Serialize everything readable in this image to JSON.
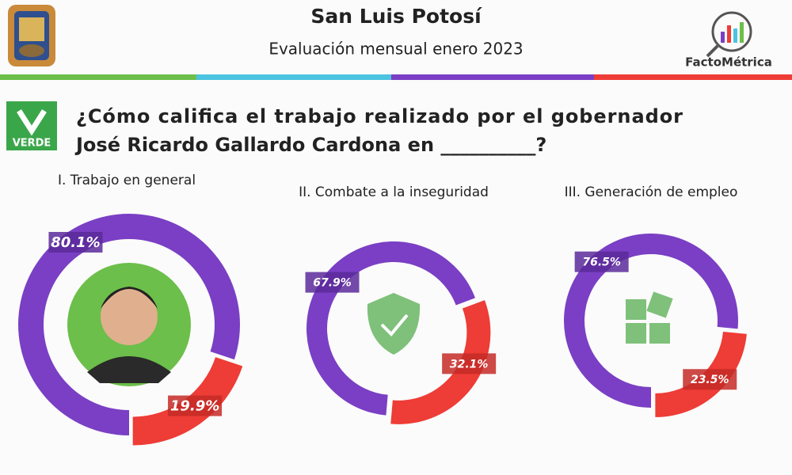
{
  "header": {
    "title": "San Luis Potosí",
    "subtitle": "Evaluación mensual enero 2023",
    "brand": "FactoMétrica",
    "party": "VERDE",
    "question": [
      "¿Cómo califica el trabajo realizado por el gobernador",
      "José Ricardo Gallardo Cardona en __________?"
    ]
  },
  "chart_data": [
    {
      "type": "pie",
      "title": "I. Trabajo en general",
      "values": [
        80.1,
        19.9
      ],
      "value_labels": [
        "80.1%",
        "19.9%"
      ],
      "colors": [
        "#7a3fc4",
        "#ee3c36"
      ]
    },
    {
      "type": "pie",
      "title": "II. Combate a la inseguridad",
      "values": [
        67.9,
        32.1
      ],
      "value_labels": [
        "67.9%",
        "32.1%"
      ],
      "colors": [
        "#7a3fc4",
        "#ee3c36"
      ]
    },
    {
      "type": "pie",
      "title": "III. Generación de empleo",
      "values": [
        76.5,
        23.5
      ],
      "value_labels": [
        "76.5%",
        "23.5%"
      ],
      "colors": [
        "#7a3fc4",
        "#ee3c36"
      ]
    }
  ]
}
